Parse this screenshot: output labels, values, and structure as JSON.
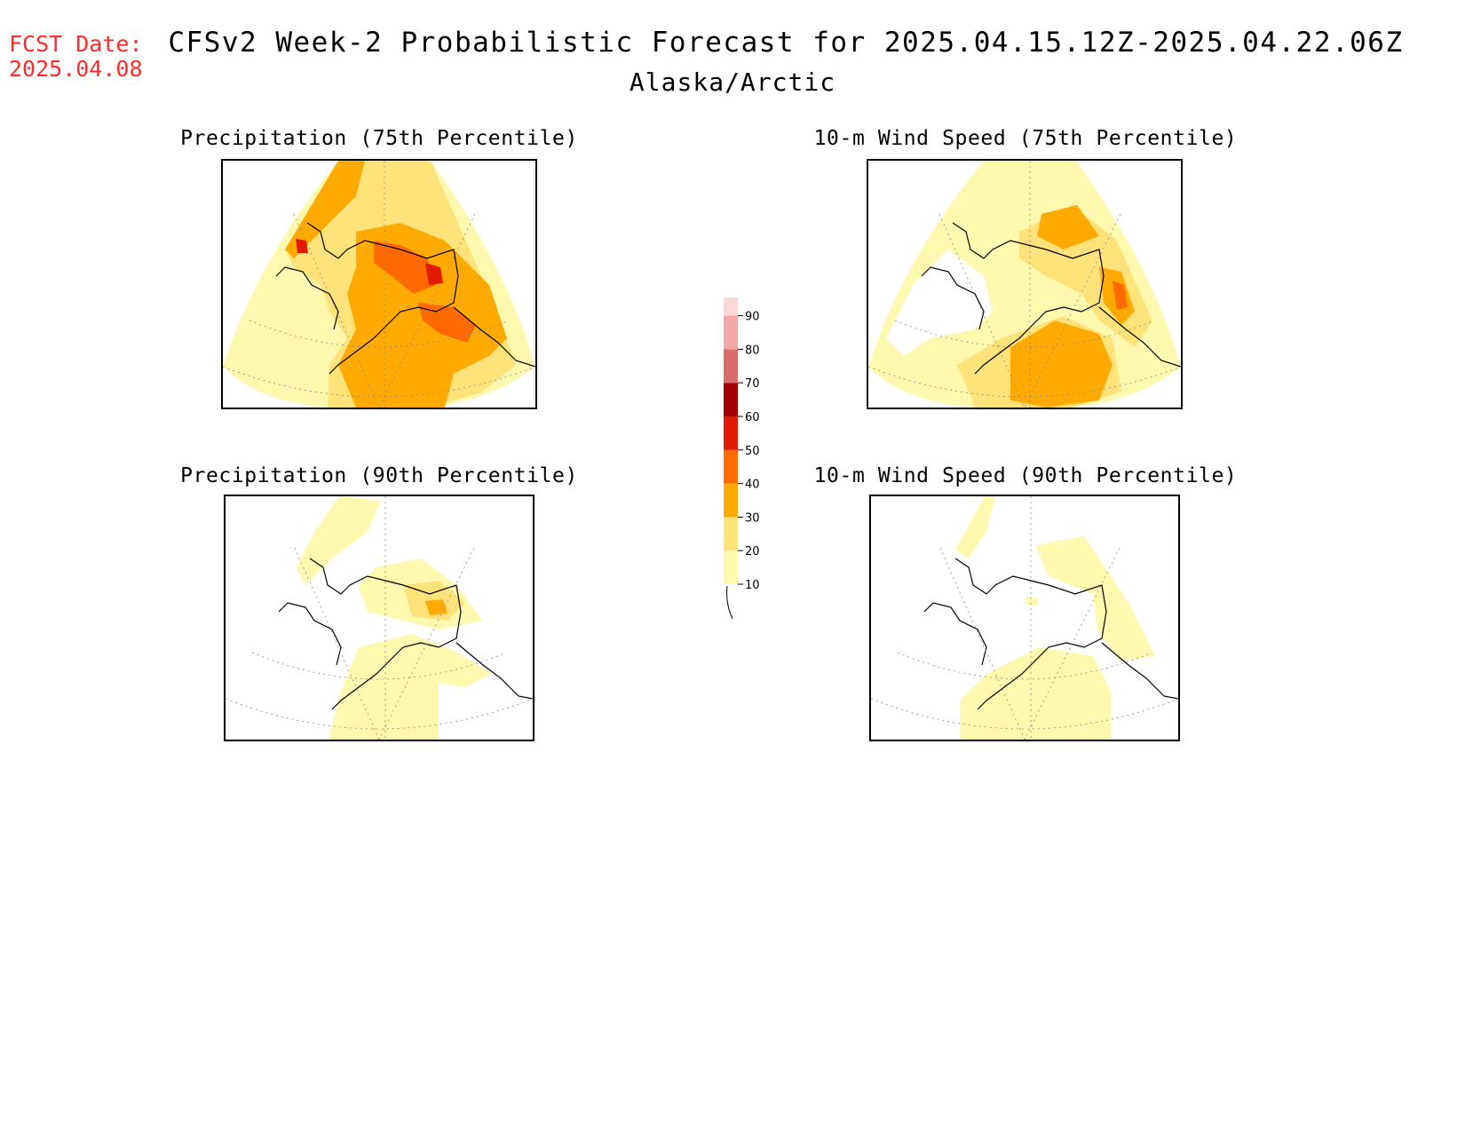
{
  "header": {
    "fcst_label": "FCST Date:",
    "fcst_date": "2025.04.08",
    "title": "CFSv2 Week-2 Probabilistic Forecast for 2025.04.15.12Z-2025.04.22.06Z",
    "region": "Alaska/Arctic"
  },
  "panels": [
    {
      "id": "precip-75",
      "title": "Precipitation (75th Percentile)",
      "dominant_level": 30,
      "max_level": 60
    },
    {
      "id": "wind-75",
      "title": "10-m Wind Speed (75th Percentile)",
      "dominant_level": 20,
      "max_level": 50
    },
    {
      "id": "precip-90",
      "title": "Precipitation (90th Percentile)",
      "dominant_level": 10,
      "max_level": 40
    },
    {
      "id": "wind-90",
      "title": "10-m Wind Speed (90th Percentile)",
      "dominant_level": 10,
      "max_level": 20
    }
  ],
  "colorbar": {
    "levels": [
      10,
      20,
      30,
      40,
      50,
      60,
      70,
      80,
      90
    ],
    "labels": [
      "10",
      "20",
      "30",
      "40",
      "50",
      "60",
      "70",
      "80",
      "90"
    ],
    "colors": [
      "#fff9b0",
      "#ffe27a",
      "#ffaa00",
      "#ff6a00",
      "#e01b00",
      "#a50000",
      "#d96b6b",
      "#f2a8a8",
      "#fbd7d7"
    ]
  }
}
